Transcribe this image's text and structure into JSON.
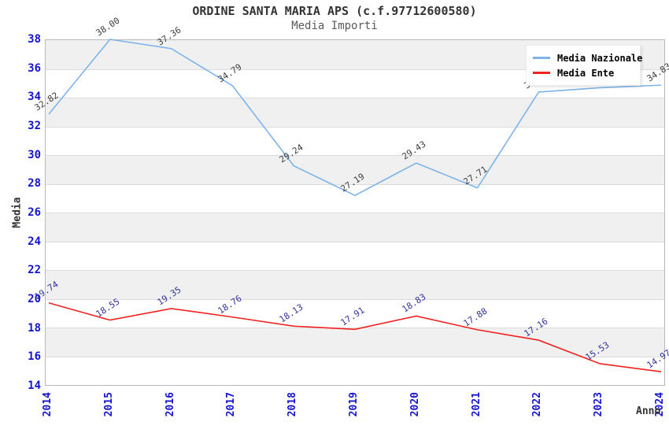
{
  "header": {
    "title": "ORDINE SANTA MARIA APS (c.f.97712600580)",
    "subtitle": "Media Importi"
  },
  "axes": {
    "y_label": "Media",
    "x_label": "Anno"
  },
  "legend": {
    "items": [
      "Media Nazionale",
      "Media Ente"
    ]
  },
  "colors": {
    "nazionale_line": "#7eb3e8",
    "ente_line": "#f32222",
    "nazionale_point_label": "#3c3c3c",
    "ente_point_label": "#323296",
    "tick_label": "#1515cd",
    "band_gray": "#f0f0f0",
    "gridline": "#dcdcdc"
  },
  "chart_data": {
    "type": "line",
    "title": "ORDINE SANTA MARIA APS (c.f.97712600580)",
    "subtitle": "Media Importi",
    "xlabel": "Anno",
    "ylabel": "Media",
    "x": [
      2014,
      2015,
      2016,
      2017,
      2018,
      2019,
      2020,
      2021,
      2022,
      2023,
      2024
    ],
    "series": [
      {
        "name": "Media Nazionale",
        "color": "#7eb3e8",
        "label_color": "#3c3c3c",
        "values": [
          32.82,
          38.0,
          37.36,
          34.79,
          29.24,
          27.19,
          29.43,
          27.71,
          34.35,
          34.65,
          34.83
        ]
      },
      {
        "name": "Media Ente",
        "color": "#f32222",
        "label_color": "#323296",
        "values": [
          19.74,
          18.55,
          19.35,
          18.76,
          18.13,
          17.91,
          18.83,
          17.88,
          17.16,
          15.53,
          14.97
        ]
      }
    ],
    "ylim": [
      14,
      38
    ],
    "ytick_step": 2,
    "grid": "horizontal-bands",
    "legend_position": "top-right",
    "point_labels_visible": true,
    "note_occluded_labels": "2022 and 2023 Media Nazionale labels partially hidden behind legend"
  }
}
